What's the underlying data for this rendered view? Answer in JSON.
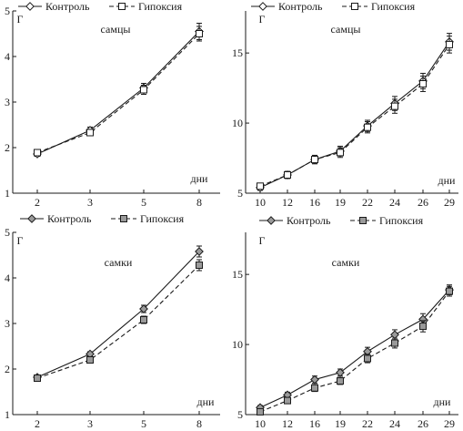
{
  "chart_data": [
    {
      "type": "line",
      "panel": "males-early",
      "annotation": "самцы",
      "ylabel": "Г",
      "xlabel": "дни",
      "categories": [
        "2",
        "3",
        "5",
        "8"
      ],
      "ylim": [
        1,
        5
      ],
      "yticks": [
        1,
        2,
        3,
        4,
        5
      ],
      "legend_position": "top",
      "series": [
        {
          "name": "Контроль",
          "values": [
            1.86,
            2.38,
            3.31,
            4.55
          ],
          "errors": [
            0.05,
            0.07,
            0.1,
            0.18
          ],
          "marker": "diamond",
          "fill": "#ffffff",
          "dash": "solid"
        },
        {
          "name": "Гипоксия",
          "values": [
            1.89,
            2.33,
            3.27,
            4.5
          ],
          "errors": [
            0.05,
            0.07,
            0.1,
            0.16
          ],
          "marker": "square",
          "fill": "#ffffff",
          "dash": "dashed"
        }
      ]
    },
    {
      "type": "line",
      "panel": "males-late",
      "annotation": "самцы",
      "ylabel": "Г",
      "xlabel": "дни",
      "categories": [
        "10",
        "12",
        "16",
        "19",
        "22",
        "24",
        "26",
        "29"
      ],
      "ylim": [
        5,
        18
      ],
      "yticks": [
        5,
        10,
        15
      ],
      "legend_position": "top",
      "series": [
        {
          "name": "Контроль",
          "values": [
            5.4,
            6.3,
            7.4,
            8.0,
            9.8,
            11.4,
            13.0,
            15.8
          ],
          "errors": [
            0.2,
            0.25,
            0.3,
            0.35,
            0.4,
            0.5,
            0.55,
            0.6
          ],
          "marker": "diamond",
          "fill": "#ffffff",
          "dash": "solid"
        },
        {
          "name": "Гипоксия",
          "values": [
            5.5,
            6.3,
            7.4,
            7.9,
            9.7,
            11.2,
            12.8,
            15.6
          ],
          "errors": [
            0.2,
            0.25,
            0.3,
            0.35,
            0.4,
            0.5,
            0.55,
            0.6
          ],
          "marker": "square",
          "fill": "#ffffff",
          "dash": "dashed"
        }
      ]
    },
    {
      "type": "line",
      "panel": "females-early",
      "annotation": "самки",
      "ylabel": "Г",
      "xlabel": "дни",
      "categories": [
        "2",
        "3",
        "5",
        "8"
      ],
      "ylim": [
        1,
        5
      ],
      "yticks": [
        1,
        2,
        3,
        4,
        5
      ],
      "legend_position": "top",
      "series": [
        {
          "name": "Контроль",
          "values": [
            1.82,
            2.33,
            3.32,
            4.58
          ],
          "errors": [
            0.04,
            0.05,
            0.08,
            0.12
          ],
          "marker": "diamond",
          "fill": "#9a9a9a",
          "dash": "solid"
        },
        {
          "name": "Гипоксия",
          "values": [
            1.8,
            2.2,
            3.08,
            4.28
          ],
          "errors": [
            0.04,
            0.05,
            0.08,
            0.12
          ],
          "marker": "square",
          "fill": "#9a9a9a",
          "dash": "dashed"
        }
      ]
    },
    {
      "type": "line",
      "panel": "females-late",
      "annotation": "самки",
      "ylabel": "Г",
      "xlabel": "дни",
      "categories": [
        "10",
        "12",
        "16",
        "19",
        "22",
        "24",
        "26",
        "29"
      ],
      "ylim": [
        5,
        18
      ],
      "yticks": [
        5,
        10,
        15
      ],
      "legend_position": "top",
      "series": [
        {
          "name": "Контроль",
          "values": [
            5.5,
            6.4,
            7.5,
            8.0,
            9.5,
            10.7,
            11.8,
            13.9
          ],
          "errors": [
            0.15,
            0.2,
            0.25,
            0.25,
            0.3,
            0.35,
            0.4,
            0.35
          ],
          "marker": "diamond",
          "fill": "#9a9a9a",
          "dash": "solid"
        },
        {
          "name": "Гипоксия",
          "values": [
            5.2,
            6.0,
            6.9,
            7.4,
            9.0,
            10.1,
            11.3,
            13.8
          ],
          "errors": [
            0.15,
            0.2,
            0.25,
            0.25,
            0.3,
            0.35,
            0.4,
            0.35
          ],
          "marker": "square",
          "fill": "#9a9a9a",
          "dash": "dashed"
        }
      ]
    }
  ]
}
